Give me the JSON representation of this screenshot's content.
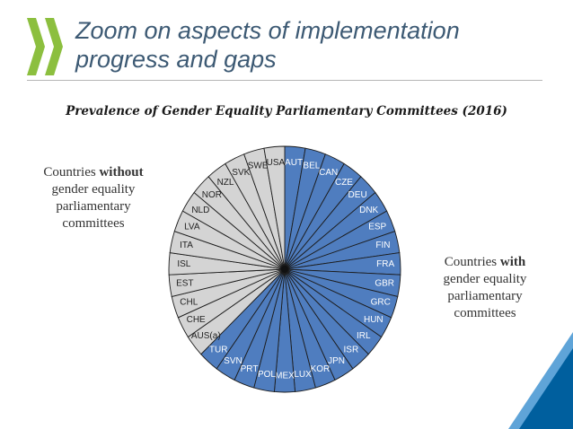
{
  "slide": {
    "title_line1": "Zoom on aspects of implementation",
    "title_line2": "progress and gaps"
  },
  "chart_data": {
    "type": "pie",
    "title": "Prevalence of Gender Equality Parliamentary Committees (2016)",
    "slices": [
      {
        "label": "AUT",
        "group": "with",
        "value": 1
      },
      {
        "label": "BEL",
        "group": "with",
        "value": 1
      },
      {
        "label": "CAN",
        "group": "with",
        "value": 1
      },
      {
        "label": "CZE",
        "group": "with",
        "value": 1
      },
      {
        "label": "DEU",
        "group": "with",
        "value": 1
      },
      {
        "label": "DNK",
        "group": "with",
        "value": 1
      },
      {
        "label": "ESP",
        "group": "with",
        "value": 1
      },
      {
        "label": "FIN",
        "group": "with",
        "value": 1
      },
      {
        "label": "FRA",
        "group": "with",
        "value": 1
      },
      {
        "label": "GBR",
        "group": "with",
        "value": 1
      },
      {
        "label": "GRC",
        "group": "with",
        "value": 1
      },
      {
        "label": "HUN",
        "group": "with",
        "value": 1
      },
      {
        "label": "IRL",
        "group": "with",
        "value": 1
      },
      {
        "label": "ISR",
        "group": "with",
        "value": 1
      },
      {
        "label": "JPN",
        "group": "with",
        "value": 1
      },
      {
        "label": "KOR",
        "group": "with",
        "value": 1
      },
      {
        "label": "LUX",
        "group": "with",
        "value": 1
      },
      {
        "label": "MEX",
        "group": "with",
        "value": 1
      },
      {
        "label": "POL",
        "group": "with",
        "value": 1
      },
      {
        "label": "PRT",
        "group": "with",
        "value": 1
      },
      {
        "label": "SVN",
        "group": "with",
        "value": 1
      },
      {
        "label": "TUR",
        "group": "with",
        "value": 1
      },
      {
        "label": "AUS(a)",
        "group": "without",
        "value": 1
      },
      {
        "label": "CHE",
        "group": "without",
        "value": 1
      },
      {
        "label": "CHL",
        "group": "without",
        "value": 1
      },
      {
        "label": "EST",
        "group": "without",
        "value": 1
      },
      {
        "label": "ISL",
        "group": "without",
        "value": 1
      },
      {
        "label": "ITA",
        "group": "without",
        "value": 1
      },
      {
        "label": "LVA",
        "group": "without",
        "value": 1
      },
      {
        "label": "NLD",
        "group": "without",
        "value": 1
      },
      {
        "label": "NOR",
        "group": "without",
        "value": 1
      },
      {
        "label": "NZL",
        "group": "without",
        "value": 1
      },
      {
        "label": "SVK",
        "group": "without",
        "value": 1
      },
      {
        "label": "SWE",
        "group": "without",
        "value": 1
      },
      {
        "label": "USA",
        "group": "without",
        "value": 1
      }
    ],
    "colors": {
      "with": "#4f7dbf",
      "without": "#d4d4d4",
      "line": "#1c1c1c"
    }
  },
  "legend": {
    "without_pre": "Countries ",
    "without_bold": "without",
    "without_post": "gender equality parliamentary committees",
    "with_pre": "Countries ",
    "with_bold": "with",
    "with_post": "gender equality parliamentary committees"
  },
  "branding": {
    "logo_icon": "oecd-chevrons-icon",
    "logo_color": "#8cbf3f",
    "corner_decoration": "blue-corner-triangle",
    "corner_colors": [
      "#005f9e",
      "#5fa4d8"
    ]
  }
}
